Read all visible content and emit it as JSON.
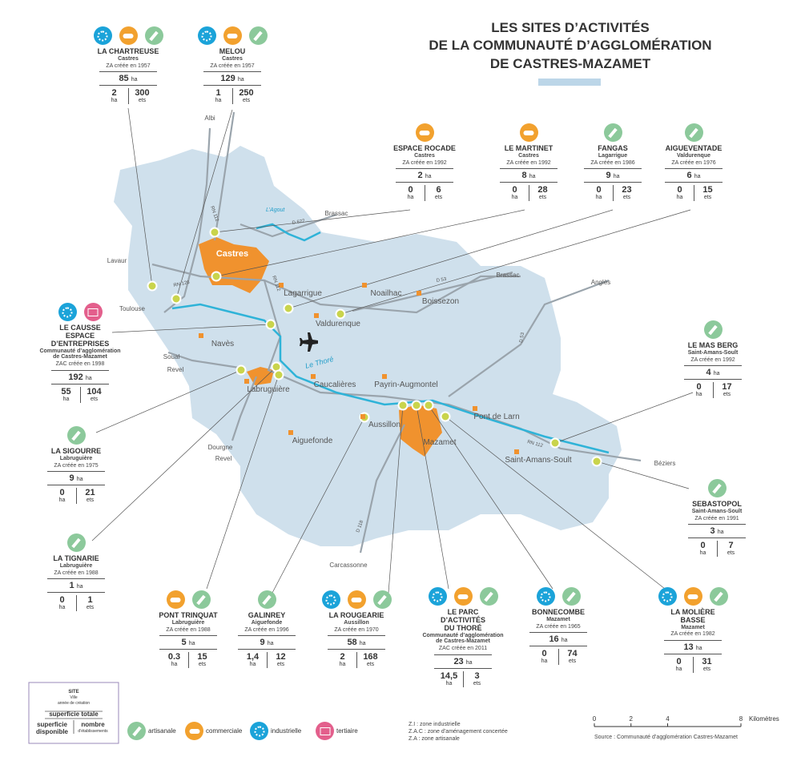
{
  "title": [
    "LES SITES D’ACTIVITÉS",
    "DE LA COMMUNAUTÉ D’AGGLOMÉRATION",
    "DE CASTRES-MAZAMET"
  ],
  "units": {
    "area": "ha",
    "establishments": "ets"
  },
  "sites": [
    {
      "name": [
        "LA CHARTREUSE"
      ],
      "town": [
        "Castres"
      ],
      "created": "ZA créée en 1957",
      "area": 85,
      "available": 2,
      "establishments": 300,
      "icons": [
        "industrielle",
        "commerciale",
        "artisanale"
      ]
    },
    {
      "name": [
        "MELOU"
      ],
      "town": [
        "Castres"
      ],
      "created": "ZA créée en 1957",
      "area": 129,
      "available": 1,
      "establishments": 250,
      "icons": [
        "industrielle",
        "commerciale",
        "artisanale"
      ]
    },
    {
      "name": [
        "ESPACE ROCADE"
      ],
      "town": [
        "Castres"
      ],
      "created": "ZA créée en 1992",
      "area": 2,
      "available": 0,
      "establishments": 6,
      "icons": [
        "commerciale"
      ]
    },
    {
      "name": [
        "LE MARTINET"
      ],
      "town": [
        "Castres"
      ],
      "created": "ZA créée en 1992",
      "area": 8,
      "available": 0,
      "establishments": 28,
      "icons": [
        "commerciale"
      ]
    },
    {
      "name": [
        "FANGAS"
      ],
      "town": [
        "Lagarrigue"
      ],
      "created": "ZA créée en 1986",
      "area": 9,
      "available": 0,
      "establishments": 23,
      "icons": [
        "artisanale"
      ]
    },
    {
      "name": [
        "AIGUEVENTADE"
      ],
      "town": [
        "Valdurenque"
      ],
      "created": "ZA créée en 1976",
      "area": 6,
      "available": 0,
      "establishments": 15,
      "icons": [
        "artisanale"
      ]
    },
    {
      "name": [
        "LE CAUSSE",
        "ESPACE",
        "D’ENTREPRISES"
      ],
      "town": [
        "Communauté d’agglomération",
        "de Castres-Mazamet"
      ],
      "created": "ZAC créée en 1998",
      "area": 192,
      "available": 55,
      "establishments": 104,
      "icons": [
        "industrielle",
        "tertiaire"
      ]
    },
    {
      "name": [
        "LE MAS BERG"
      ],
      "town": [
        "Saint-Amans-Soult"
      ],
      "created": "ZA créée en 1992",
      "area": 4,
      "available": 0,
      "establishments": 17,
      "icons": [
        "artisanale"
      ]
    },
    {
      "name": [
        "LA SIGOURRE"
      ],
      "town": [
        "Labruguière"
      ],
      "created": "ZA créée en 1975",
      "area": 9,
      "available": 0,
      "establishments": 21,
      "icons": [
        "artisanale"
      ]
    },
    {
      "name": [
        "SEBASTOPOL"
      ],
      "town": [
        "Saint-Amans-Soult"
      ],
      "created": "ZA créée en 1991",
      "area": 3,
      "available": 0,
      "establishments": 7,
      "icons": [
        "artisanale"
      ]
    },
    {
      "name": [
        "LA TIGNARIE"
      ],
      "town": [
        "Labruguière"
      ],
      "created": "ZA créée en 1988",
      "area": 1,
      "available": 0,
      "establishments": 1,
      "icons": [
        "artisanale"
      ]
    },
    {
      "name": [
        "PONT TRINQUAT"
      ],
      "town": [
        "Labruguière"
      ],
      "created": "ZA créée en 1988",
      "area": 5,
      "available": 0.3,
      "establishments": 15,
      "icons": [
        "commerciale",
        "artisanale"
      ]
    },
    {
      "name": [
        "GALINREY"
      ],
      "town": [
        "Aiguefonde"
      ],
      "created": "ZA créée en 1996",
      "area": 9,
      "available": "1,4",
      "establishments": 12,
      "icons": [
        "artisanale"
      ]
    },
    {
      "name": [
        "LA ROUGEARIE"
      ],
      "town": [
        "Aussillon"
      ],
      "created": "ZA créée en 1970",
      "area": 58,
      "available": 2,
      "establishments": 168,
      "icons": [
        "industrielle",
        "commerciale",
        "artisanale"
      ]
    },
    {
      "name": [
        "LE PARC",
        "D’ACTIVITÉS",
        "DU THORÉ"
      ],
      "town": [
        "Communauté d’agglomération",
        "de Castres-Mazamet"
      ],
      "created": "ZAC créée en 2011",
      "area": 23,
      "available": "14,5",
      "establishments": 3,
      "icons": [
        "industrielle",
        "commerciale",
        "artisanale"
      ]
    },
    {
      "name": [
        "BONNECOMBE"
      ],
      "town": [
        "Mazamet"
      ],
      "created": "ZA créée en 1965",
      "area": 16,
      "available": 0,
      "establishments": 74,
      "icons": [
        "industrielle",
        "artisanale"
      ]
    },
    {
      "name": [
        "LA MOLIÈRE",
        "BASSE"
      ],
      "town": [
        "Mazamet"
      ],
      "created": "ZA créée en 1982",
      "area": 13,
      "available": 0,
      "establishments": 31,
      "icons": [
        "industrielle",
        "commerciale",
        "artisanale"
      ]
    }
  ],
  "places": [
    "Castres",
    "Lagarrigue",
    "Noailhac",
    "Boissezon",
    "Valdurenque",
    "Navès",
    "Labruguière",
    "Caucalières",
    "Payrin-Augmontel",
    "Aussillon",
    "Aiguefonde",
    "Mazamet",
    "Pont de Larn",
    "Saint-Amans-Soult"
  ],
  "rivers": [
    "Le Thoré",
    "L’Agout"
  ],
  "destinations": [
    "Albi",
    "Brassac",
    "Brassac",
    "Lavaur",
    "Toulouse",
    "Soual",
    "Revel",
    "Dourgne",
    "Revel",
    "Anglès",
    "Béziers",
    "Carcassonne"
  ],
  "roads": [
    "RN 112",
    "D 622",
    "RN 126",
    "RN 112",
    "D 53",
    "D 53",
    "RN 112",
    "D 118"
  ],
  "legend": {
    "site": "SITE",
    "town": "Ville",
    "year": "année de création",
    "total": "superficie totale",
    "available": [
      "superficie",
      "disponible"
    ],
    "count": [
      "nombre",
      "d’établissements"
    ],
    "types": [
      {
        "label": "artisanale",
        "color": "#8cc99b"
      },
      {
        "label": "commerciale",
        "color": "#f2a12e"
      },
      {
        "label": "industrielle",
        "color": "#1ba3d9"
      },
      {
        "label": "tertiaire",
        "color": "#e35f8c"
      }
    ]
  },
  "notes": [
    "Z.I : zone industrielle",
    "Z.A.C : zone d’aménagement concertée",
    "Z.A : zone artisanale"
  ],
  "scale": {
    "ticks": [
      0,
      2,
      4,
      8
    ],
    "unit": "Kilomètres"
  },
  "source": "Source : Communauté d’agglomération Castres-Mazamet"
}
